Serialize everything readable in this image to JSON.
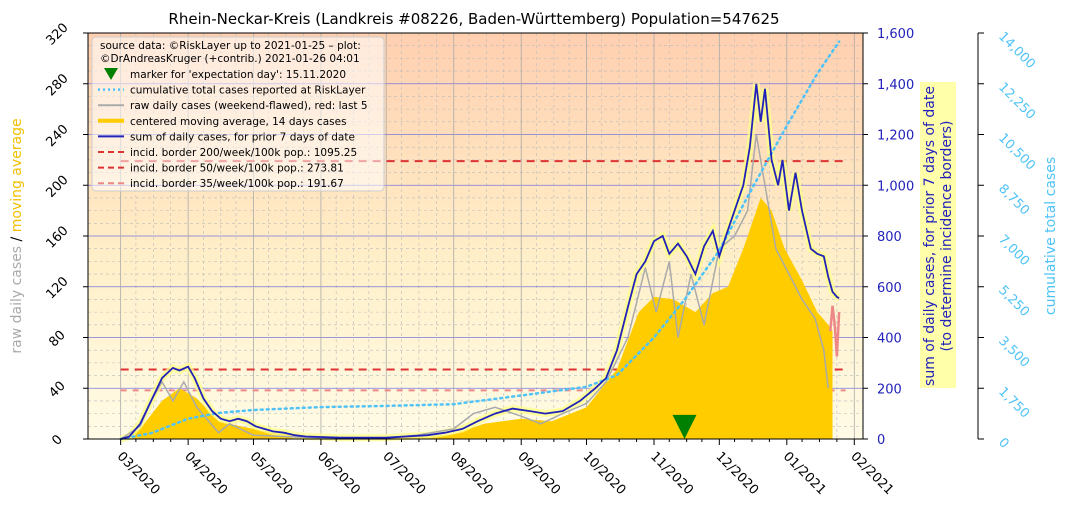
{
  "chart_data": {
    "type": "line",
    "title": "Rhein-Neckar-Kreis (Landkreis #08226, Baden-Württemberg) Population=547625",
    "y_left": {
      "label_raw": "raw daily cases",
      "label_sep": "/",
      "label_avg": "moving average",
      "range": [
        0,
        320
      ],
      "ticks": [
        "0",
        "40",
        "80",
        "120",
        "160",
        "200",
        "240",
        "280",
        "320"
      ],
      "tick_values": [
        0,
        40,
        80,
        120,
        160,
        200,
        240,
        280,
        320
      ]
    },
    "y_right": {
      "label_line1": "sum of daily cases, for prior 7 days of date",
      "label_line2": "(to determine incidence borders)",
      "range": [
        0,
        1600
      ],
      "ticks": [
        "0",
        "200",
        "400",
        "600",
        "800",
        "1,000",
        "1,200",
        "1,400",
        "1,600"
      ],
      "tick_values": [
        0,
        200,
        400,
        600,
        800,
        1000,
        1200,
        1400,
        1600
      ]
    },
    "y_far_right": {
      "label": "cumulative total cases",
      "range": [
        0,
        14000
      ],
      "ticks": [
        "0",
        "1,750",
        "3,500",
        "5,250",
        "7,000",
        "8,750",
        "10,500",
        "12,250",
        "14,000"
      ],
      "tick_values": [
        0,
        1750,
        3500,
        5250,
        7000,
        8750,
        10500,
        12250,
        14000
      ]
    },
    "x_axis": {
      "range": [
        "2020-02-15",
        "2021-02-05"
      ],
      "ticks": [
        "03/2020",
        "04/2020",
        "05/2020",
        "06/2020",
        "07/2020",
        "08/2020",
        "09/2020",
        "10/2020",
        "11/2020",
        "12/2020",
        "01/2021",
        "02/2021"
      ],
      "tick_dates": [
        "2020-03-01",
        "2020-04-01",
        "2020-05-01",
        "2020-06-01",
        "2020-07-01",
        "2020-08-01",
        "2020-09-01",
        "2020-10-01",
        "2020-11-01",
        "2020-12-01",
        "2021-01-01",
        "2021-02-01"
      ]
    },
    "legend": {
      "placement": "top-left",
      "source_line1": "source data: ©RiskLayer up to 2021-01-25 – plot:",
      "source_line2": "©DrAndreasKruger (+contrib.) 2021-01-26 04:01",
      "entries": [
        {
          "key": "marker",
          "label": "marker for 'expectation day': 15.11.2020",
          "color": "#008000"
        },
        {
          "key": "cumulative",
          "label": "cumulative total cases reported at RiskLayer",
          "color": "#4fc3f7"
        },
        {
          "key": "raw",
          "label": "raw daily cases (weekend-flawed), red: last 5",
          "color": "#aaaaaa"
        },
        {
          "key": "avg",
          "label": "centered moving average, 14 days cases",
          "color": "#ffcc00"
        },
        {
          "key": "sum7",
          "label": "sum of daily cases, for prior 7 days of date",
          "color": "#2222bb"
        },
        {
          "key": "b200",
          "label": "incid. border 200/week/100k pop.: 1095.25",
          "color": "#dd3333"
        },
        {
          "key": "b50",
          "label": "incid. border 50/week/100k pop.: 273.81",
          "color": "#dd3333"
        },
        {
          "key": "b35",
          "label": "incid. border 35/week/100k pop.: 191.67",
          "color": "#ee8888"
        }
      ]
    },
    "borders": [
      {
        "name": "200",
        "value": 1095.25
      },
      {
        "name": "50",
        "value": 273.81
      },
      {
        "name": "35",
        "value": 191.67
      }
    ],
    "expectation_day": "2020-11-15",
    "sum7_series": [
      [
        "2020-03-01",
        0
      ],
      [
        "2020-03-05",
        10
      ],
      [
        "2020-03-10",
        60
      ],
      [
        "2020-03-15",
        150
      ],
      [
        "2020-03-20",
        240
      ],
      [
        "2020-03-25",
        280
      ],
      [
        "2020-03-28",
        270
      ],
      [
        "2020-04-01",
        285
      ],
      [
        "2020-04-04",
        240
      ],
      [
        "2020-04-08",
        160
      ],
      [
        "2020-04-12",
        110
      ],
      [
        "2020-04-16",
        80
      ],
      [
        "2020-04-20",
        70
      ],
      [
        "2020-04-24",
        80
      ],
      [
        "2020-04-28",
        70
      ],
      [
        "2020-05-02",
        50
      ],
      [
        "2020-05-06",
        40
      ],
      [
        "2020-05-10",
        30
      ],
      [
        "2020-05-15",
        25
      ],
      [
        "2020-05-20",
        15
      ],
      [
        "2020-05-25",
        10
      ],
      [
        "2020-06-01",
        8
      ],
      [
        "2020-06-10",
        5
      ],
      [
        "2020-06-20",
        5
      ],
      [
        "2020-07-01",
        5
      ],
      [
        "2020-07-10",
        10
      ],
      [
        "2020-07-20",
        15
      ],
      [
        "2020-07-28",
        25
      ],
      [
        "2020-08-05",
        40
      ],
      [
        "2020-08-12",
        70
      ],
      [
        "2020-08-20",
        100
      ],
      [
        "2020-08-28",
        120
      ],
      [
        "2020-09-05",
        110
      ],
      [
        "2020-09-12",
        100
      ],
      [
        "2020-09-20",
        110
      ],
      [
        "2020-09-28",
        150
      ],
      [
        "2020-10-05",
        200
      ],
      [
        "2020-10-10",
        240
      ],
      [
        "2020-10-15",
        350
      ],
      [
        "2020-10-20",
        520
      ],
      [
        "2020-10-24",
        650
      ],
      [
        "2020-10-28",
        700
      ],
      [
        "2020-11-01",
        780
      ],
      [
        "2020-11-05",
        800
      ],
      [
        "2020-11-08",
        730
      ],
      [
        "2020-11-12",
        770
      ],
      [
        "2020-11-16",
        720
      ],
      [
        "2020-11-20",
        650
      ],
      [
        "2020-11-24",
        760
      ],
      [
        "2020-11-28",
        820
      ],
      [
        "2020-12-01",
        720
      ],
      [
        "2020-12-04",
        800
      ],
      [
        "2020-12-08",
        900
      ],
      [
        "2020-12-12",
        1000
      ],
      [
        "2020-12-15",
        1150
      ],
      [
        "2020-12-18",
        1400
      ],
      [
        "2020-12-20",
        1250
      ],
      [
        "2020-12-22",
        1380
      ],
      [
        "2020-12-25",
        1100
      ],
      [
        "2020-12-28",
        1000
      ],
      [
        "2020-12-30",
        1100
      ],
      [
        "2021-01-02",
        900
      ],
      [
        "2021-01-05",
        1050
      ],
      [
        "2021-01-08",
        900
      ],
      [
        "2021-01-12",
        750
      ],
      [
        "2021-01-15",
        730
      ],
      [
        "2021-01-18",
        720
      ],
      [
        "2021-01-20",
        640
      ],
      [
        "2021-01-22",
        580
      ],
      [
        "2021-01-24",
        560
      ],
      [
        "2021-01-25",
        555
      ]
    ],
    "avg_series": [
      [
        "2020-03-01",
        0
      ],
      [
        "2020-03-10",
        8
      ],
      [
        "2020-03-20",
        30
      ],
      [
        "2020-03-28",
        40
      ],
      [
        "2020-04-05",
        32
      ],
      [
        "2020-04-15",
        14
      ],
      [
        "2020-04-25",
        10
      ],
      [
        "2020-05-10",
        5
      ],
      [
        "2020-06-01",
        1
      ],
      [
        "2020-07-01",
        1
      ],
      [
        "2020-07-20",
        2
      ],
      [
        "2020-08-01",
        4
      ],
      [
        "2020-08-15",
        12
      ],
      [
        "2020-09-01",
        16
      ],
      [
        "2020-09-15",
        14
      ],
      [
        "2020-10-01",
        25
      ],
      [
        "2020-10-15",
        55
      ],
      [
        "2020-10-25",
        100
      ],
      [
        "2020-11-01",
        112
      ],
      [
        "2020-11-10",
        110
      ],
      [
        "2020-11-20",
        100
      ],
      [
        "2020-11-28",
        115
      ],
      [
        "2020-12-05",
        120
      ],
      [
        "2020-12-12",
        150
      ],
      [
        "2020-12-20",
        190
      ],
      [
        "2020-12-25",
        180
      ],
      [
        "2020-12-31",
        150
      ],
      [
        "2021-01-08",
        125
      ],
      [
        "2021-01-15",
        100
      ],
      [
        "2021-01-20",
        90
      ],
      [
        "2021-01-22",
        85
      ]
    ],
    "raw_series": [
      [
        "2020-03-01",
        0
      ],
      [
        "2020-03-10",
        10
      ],
      [
        "2020-03-15",
        30
      ],
      [
        "2020-03-20",
        45
      ],
      [
        "2020-03-25",
        30
      ],
      [
        "2020-03-30",
        45
      ],
      [
        "2020-04-05",
        25
      ],
      [
        "2020-04-10",
        15
      ],
      [
        "2020-04-15",
        5
      ],
      [
        "2020-04-20",
        12
      ],
      [
        "2020-04-25",
        8
      ],
      [
        "2020-05-01",
        3
      ],
      [
        "2020-05-15",
        2
      ],
      [
        "2020-06-01",
        1
      ],
      [
        "2020-07-01",
        1
      ],
      [
        "2020-07-15",
        3
      ],
      [
        "2020-08-01",
        8
      ],
      [
        "2020-08-10",
        20
      ],
      [
        "2020-08-20",
        25
      ],
      [
        "2020-09-01",
        18
      ],
      [
        "2020-09-10",
        12
      ],
      [
        "2020-09-20",
        20
      ],
      [
        "2020-10-01",
        28
      ],
      [
        "2020-10-10",
        45
      ],
      [
        "2020-10-20",
        80
      ],
      [
        "2020-10-28",
        135
      ],
      [
        "2020-11-02",
        100
      ],
      [
        "2020-11-08",
        140
      ],
      [
        "2020-11-12",
        80
      ],
      [
        "2020-11-18",
        130
      ],
      [
        "2020-11-24",
        90
      ],
      [
        "2020-12-01",
        150
      ],
      [
        "2020-12-08",
        160
      ],
      [
        "2020-12-14",
        180
      ],
      [
        "2020-12-18",
        240
      ],
      [
        "2020-12-22",
        200
      ],
      [
        "2020-12-27",
        150
      ],
      [
        "2021-01-02",
        130
      ],
      [
        "2021-01-08",
        110
      ],
      [
        "2021-01-14",
        95
      ],
      [
        "2021-01-18",
        70
      ],
      [
        "2021-01-20",
        40
      ]
    ],
    "raw_last5_series": [
      [
        "2021-01-21",
        85
      ],
      [
        "2021-01-22",
        105
      ],
      [
        "2021-01-23",
        90
      ],
      [
        "2021-01-24",
        65
      ],
      [
        "2021-01-25",
        100
      ]
    ],
    "cumulative_series": [
      [
        "2020-03-01",
        0
      ],
      [
        "2020-03-15",
        200
      ],
      [
        "2020-04-01",
        700
      ],
      [
        "2020-04-15",
        900
      ],
      [
        "2020-05-01",
        1000
      ],
      [
        "2020-06-01",
        1100
      ],
      [
        "2020-07-01",
        1140
      ],
      [
        "2020-08-01",
        1200
      ],
      [
        "2020-09-01",
        1500
      ],
      [
        "2020-10-01",
        1800
      ],
      [
        "2020-10-15",
        2200
      ],
      [
        "2020-11-01",
        3500
      ],
      [
        "2020-11-15",
        4800
      ],
      [
        "2020-12-01",
        6500
      ],
      [
        "2020-12-15",
        8500
      ],
      [
        "2021-01-01",
        10800
      ],
      [
        "2021-01-15",
        12600
      ],
      [
        "2021-01-25",
        13700
      ]
    ]
  }
}
